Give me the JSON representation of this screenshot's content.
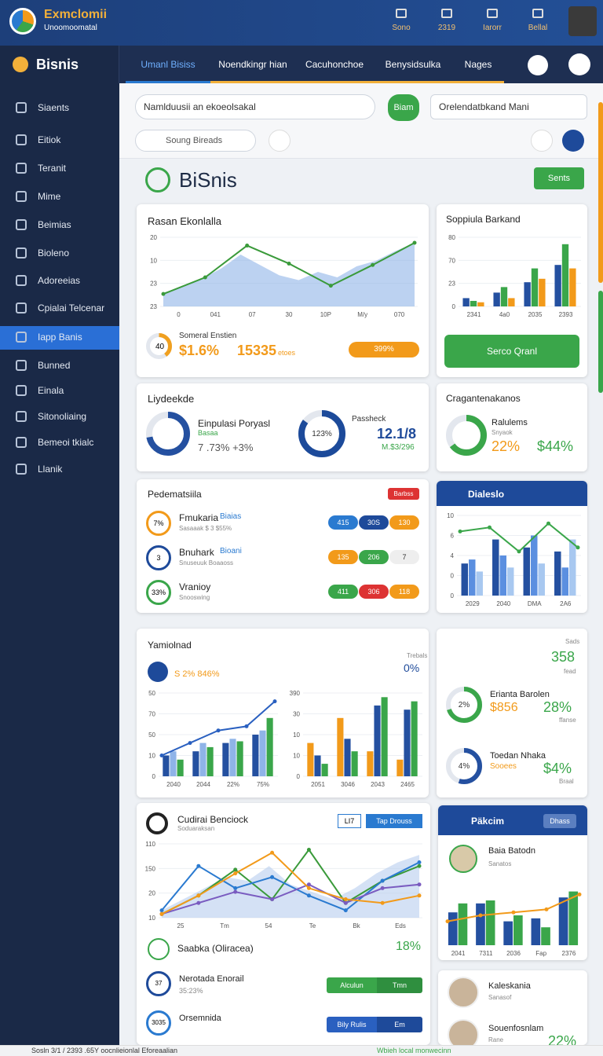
{
  "header": {
    "brand": "Exmclomii",
    "tagline": "Unoomoomatal",
    "icons": [
      "Sono",
      "2319",
      "Iarorr",
      "Bellal"
    ]
  },
  "nav": {
    "app": "Bisnis",
    "tabs": [
      "Umanl Bisiss",
      "Noendkingr hian",
      "Cacuhonchoe",
      "Benysidsulka",
      "Nages"
    ],
    "active": 0
  },
  "sidebar": {
    "items": [
      "Siaents",
      "Eitiok",
      "Teranit",
      "Mime",
      "Beimias",
      "Bioleno",
      "Adoreeias",
      "Cpialai Telcenar",
      "Iapp Banis",
      "Bunned",
      "Einala",
      "Sitonoliaing",
      "Bemeoi tkialc",
      "Llanik"
    ],
    "active": 8
  },
  "filters": {
    "select": "Namlduusii an ekoeolsakal",
    "chat": "Biam",
    "search": "Orelendatbkand Mani",
    "chip": "Soung Bireads"
  },
  "page": {
    "title": "BiSnis",
    "button": "Sents"
  },
  "c1": {
    "title": "Rasan Ekonlalla",
    "chart": {
      "ylim": [
        0,
        100
      ],
      "ylabels": [
        "20",
        "10",
        "23",
        "23"
      ],
      "xlabels": [
        "0",
        "041",
        "07",
        "30",
        "10P",
        "M/y",
        "070"
      ],
      "series": [
        {
          "type": "area",
          "color": "#8fb4e8",
          "values": [
            20,
            28,
            40,
            55,
            75,
            60,
            45,
            38,
            50,
            42,
            58,
            66,
            80,
            92
          ]
        },
        {
          "type": "line",
          "color": "#3a9a3a",
          "values": [
            18,
            42,
            88,
            62,
            30,
            60,
            92
          ]
        }
      ]
    },
    "donut": {
      "value": 40,
      "color": "#f0a020"
    },
    "name": "Someral Enstien",
    "pct": "$1.6%",
    "count": "15335",
    "unit": "etoes",
    "tag": "399%"
  },
  "c2": {
    "title": "Soppiula Barkand",
    "chart": {
      "ylim": [
        0,
        100
      ],
      "ylabels": [
        "80",
        "70",
        "23",
        "0"
      ],
      "xlabels": [
        "2341",
        "4a0",
        "2035",
        "2393"
      ],
      "series": [
        {
          "type": "bar",
          "color": "#2450a0",
          "values": [
            12,
            20,
            35,
            60
          ]
        },
        {
          "type": "bar",
          "color": "#3aa64a",
          "values": [
            8,
            28,
            55,
            90
          ]
        },
        {
          "type": "bar",
          "color": "#f29a1a",
          "values": [
            6,
            12,
            40,
            55
          ]
        }
      ]
    },
    "button": "Serco Qranl"
  },
  "c3": {
    "title": "Liydeekde",
    "donut1": {
      "value": 72,
      "color": "#2450a0"
    },
    "name": "Einpulasi Poryasl",
    "sub": "Basaa",
    "stat": "7 .73% +3%",
    "donut2": {
      "value": 85,
      "label": "123%",
      "color": "#1c4a9a"
    },
    "label": "Passheck",
    "big": "12.1/8",
    "small": "M.$3/296"
  },
  "c4": {
    "title": "Cragantenakanos",
    "donut": {
      "value": 65,
      "color": "#3aa64a"
    },
    "name": "Ralulems",
    "sub": "Snyaok",
    "a": "22%",
    "b": "$44%"
  },
  "c5": {
    "title": "Pedematsiila",
    "tag": "Barbss",
    "rows": [
      {
        "avatar": "7%",
        "name": "Fmukaria",
        "tag": "Biaias",
        "sub": "Sasaaak $ 3 $55%",
        "pills": [
          "415",
          "30S",
          "130"
        ]
      },
      {
        "avatar": "3",
        "name": "Bnuhark",
        "tag": "Bioani",
        "sub": "Snuseuuk Boaaoss",
        "pills": [
          "135",
          "206",
          "7"
        ]
      },
      {
        "avatar": "33%",
        "name": "Vranioy",
        "tag": "",
        "sub": "Snooswing",
        "pills": [
          "411",
          "306",
          "118"
        ]
      }
    ]
  },
  "c6": {
    "title": "Dialeslo",
    "chart": {
      "ylim": [
        0,
        100
      ],
      "ylabels": [
        "10",
        "6",
        "4",
        "0",
        "0"
      ],
      "xlabels": [
        "2029",
        "2040",
        "DMA",
        "2A6"
      ],
      "series": [
        {
          "type": "bar",
          "color": "#2450a0",
          "values": [
            40,
            70,
            60,
            55
          ]
        },
        {
          "type": "bar",
          "color": "#5b8fe0",
          "values": [
            45,
            50,
            75,
            35
          ]
        },
        {
          "type": "bar",
          "color": "#a8c8f0",
          "values": [
            30,
            35,
            40,
            70
          ]
        },
        {
          "type": "line",
          "color": "#3aa64a",
          "values": [
            80,
            85,
            55,
            90,
            60
          ]
        }
      ]
    }
  },
  "c7": {
    "title": "Yamiolnad",
    "label": "Trebals",
    "pct": "0%",
    "stat": "S 2% 846%",
    "chart1": {
      "ylim": [
        0,
        100
      ],
      "ylabels": [
        "50",
        "70",
        "50",
        "10",
        "0"
      ],
      "xlabels": [
        "2040",
        "2044",
        "22%",
        "75%"
      ],
      "series": [
        {
          "type": "bar",
          "color": "#2450a0",
          "values": [
            25,
            30,
            40,
            50
          ]
        },
        {
          "type": "bar",
          "color": "#8fb4e8",
          "values": [
            30,
            40,
            45,
            55
          ]
        },
        {
          "type": "bar",
          "color": "#3aa64a",
          "values": [
            20,
            35,
            42,
            70
          ]
        },
        {
          "type": "line",
          "color": "#2a60c0",
          "values": [
            25,
            40,
            55,
            60,
            90
          ]
        }
      ]
    },
    "chart2": {
      "ylim": [
        0,
        100
      ],
      "ylabels": [
        "390",
        "30",
        "10",
        "10",
        "0"
      ],
      "xlabels": [
        "2051",
        "3046",
        "2043",
        "2465"
      ],
      "series": [
        {
          "type": "bar",
          "color": "#f29a1a",
          "values": [
            40,
            70,
            30,
            20
          ]
        },
        {
          "type": "bar",
          "color": "#2450a0",
          "values": [
            25,
            45,
            85,
            80
          ]
        },
        {
          "type": "bar",
          "color": "#3aa64a",
          "values": [
            15,
            30,
            95,
            90
          ]
        }
      ]
    }
  },
  "c8": {
    "label": "Sads",
    "big": "358",
    "sub": "fead",
    "r1": {
      "donut": {
        "value": 70,
        "label": "2%",
        "color": "#3aa64a"
      },
      "name": "Erianta Barolen",
      "val": "$856",
      "pct": "28%",
      "sub": "ffanse"
    },
    "r2": {
      "donut": {
        "value": 55,
        "label": "4%",
        "color": "#2450a0"
      },
      "name": "Toedan Nhaka",
      "val": "Sooees",
      "pct": "$4%",
      "sub": "Braal"
    }
  },
  "c9": {
    "title": "Cudirai Benciock",
    "sub": "Soduaraksan",
    "tabs": [
      "LI7",
      "Tap Drouss"
    ],
    "chart": {
      "ylim": [
        0,
        100
      ],
      "ylabels": [
        "110",
        "150",
        "20",
        "10"
      ],
      "xlabels": [
        "25",
        "Tm",
        "54",
        "Te",
        "Bk",
        "Eds"
      ],
      "series": [
        {
          "type": "area",
          "color": "#b8cdef",
          "values": [
            10,
            25,
            40,
            55,
            50,
            70,
            45,
            35,
            25,
            40,
            60,
            75,
            85
          ]
        },
        {
          "type": "line",
          "color": "#3a9a3a",
          "values": [
            5,
            30,
            65,
            25,
            92,
            20,
            50,
            70
          ]
        },
        {
          "type": "line",
          "color": "#2a7ad0",
          "values": [
            10,
            70,
            40,
            55,
            30,
            10,
            50,
            75
          ]
        },
        {
          "type": "line",
          "color": "#7a5cc0",
          "values": [
            5,
            20,
            35,
            25,
            45,
            20,
            40,
            45
          ]
        },
        {
          "type": "line",
          "color": "#f29a1a",
          "values": [
            5,
            30,
            60,
            88,
            40,
            25,
            20,
            30
          ]
        }
      ]
    },
    "rows": [
      {
        "name": "Saabka (Oliracea)",
        "val": "18%"
      },
      {
        "avatar": "37",
        "name": "Nerotada Enorail",
        "sub": "35:23%",
        "pills": [
          "Alculun",
          "Tmn"
        ]
      },
      {
        "avatar": "3035",
        "name": "Orsemnida",
        "pills": [
          "Bily Rulis",
          "Em"
        ]
      }
    ]
  },
  "c10": {
    "title": "Päkcim",
    "tag": "Dhass",
    "name": "Baia Batodn",
    "sub": "Sanatos",
    "chart": {
      "ylim": [
        0,
        100
      ],
      "ylabels": [],
      "xlabels": [
        "2041",
        "7311",
        "2036",
        "Fap",
        "2376"
      ],
      "series": [
        {
          "type": "bar",
          "color": "#2450a0",
          "values": [
            55,
            70,
            40,
            45,
            80
          ]
        },
        {
          "type": "bar",
          "color": "#3aa64a",
          "values": [
            70,
            75,
            50,
            30,
            90
          ]
        },
        {
          "type": "line",
          "color": "#f29a1a",
          "values": [
            40,
            50,
            55,
            60,
            85
          ]
        }
      ]
    }
  },
  "c11": {
    "rows": [
      {
        "name": "Kaleskania",
        "sub": "Sanasof"
      },
      {
        "name": "Souenfosnlam",
        "sub": "Rane",
        "val": "22%"
      }
    ]
  },
  "footer": {
    "left": "Sosln 3/1 / 2393 .65Y oocnlieionlal Eforeaalian",
    "right": "Wbieh local monwecinn"
  }
}
